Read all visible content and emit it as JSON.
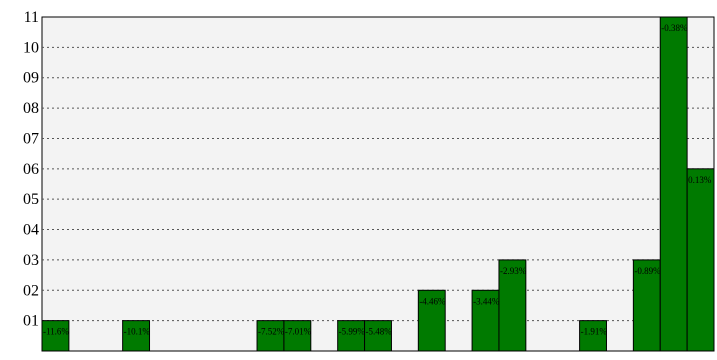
{
  "chart_data": {
    "type": "bar",
    "categories": [
      "-11.6%",
      "",
      "",
      "-10.1%",
      "",
      "",
      "",
      "",
      "-7.52%",
      "-7.01%",
      "",
      "-5.99%",
      "-5.48%",
      "",
      "-4.46%",
      "",
      "-3.44%",
      "-2.93%",
      "",
      "",
      "-1.91%",
      "",
      "-0.89%",
      "-0.38%",
      "0.13%"
    ],
    "values": [
      1,
      0,
      0,
      1,
      0,
      0,
      0,
      0,
      1,
      1,
      0,
      1,
      1,
      0,
      2,
      0,
      2,
      3,
      0,
      0,
      1,
      0,
      3,
      11,
      6
    ],
    "bar_labels": [
      "-11.6%",
      "",
      "",
      "-10.1%",
      "",
      "",
      "",
      "",
      "-7.52%",
      "-7.01%",
      "",
      "-5.99%",
      "-5.48%",
      "",
      "-4.46%",
      "",
      "-3.44%",
      "-2.93%",
      "",
      "",
      "-1.91%",
      "",
      "-0.89%",
      "-0.38%",
      "0.13%"
    ],
    "yticks": [
      "01",
      "02",
      "03",
      "04",
      "05",
      "06",
      "07",
      "08",
      "09",
      "10",
      "11"
    ],
    "ylim": [
      0,
      11
    ],
    "grid": true,
    "colors": {
      "bar_fill": "#007a00",
      "bar_stroke": "#000000",
      "plot_bg": "#f3f3f3",
      "grid": "#555555",
      "axis": "#000000"
    }
  }
}
